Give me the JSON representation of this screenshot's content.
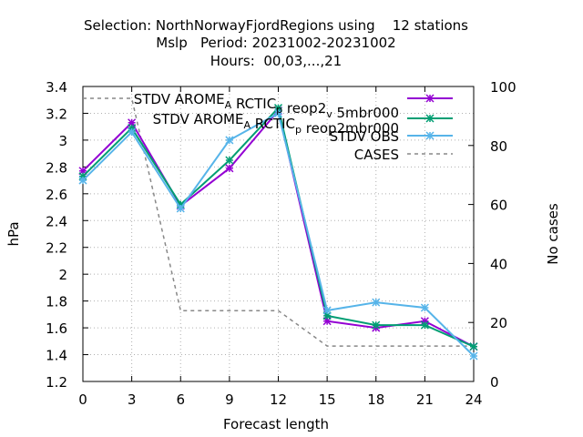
{
  "title_lines": [
    "Selection: NorthNorwayFjordRegions using    12 stations",
    "Mslp   Period: 20231002-20231002",
    "Hours:  00,03,...,21"
  ],
  "chart_data": {
    "type": "line",
    "xlabel": "Forecast length",
    "ylabel": "hPa",
    "y2label": "No cases",
    "x": [
      0,
      3,
      6,
      9,
      12,
      15,
      18,
      21,
      24
    ],
    "xlim": [
      0,
      24
    ],
    "ylim": [
      1.2,
      3.4
    ],
    "y2lim": [
      0,
      100
    ],
    "x_ticks": [
      "0",
      "3",
      "6",
      "9",
      "12",
      "15",
      "18",
      "21",
      "24"
    ],
    "y_ticks": [
      "1.2",
      "1.4",
      "1.6",
      "1.8",
      "2",
      "2.2",
      "2.4",
      "2.6",
      "2.8",
      "3",
      "3.2",
      "3.4"
    ],
    "y2_ticks": [
      "0",
      "20",
      "40",
      "60",
      "80",
      "100"
    ],
    "legend_position": "top-right",
    "grid": true,
    "series": [
      {
        "name": "STDV AROME_ARCTIC_preop2_v5mbr000",
        "legend_main": [
          "STDV AROME",
          " RCTIC",
          " reop2",
          " 5mbr000"
        ],
        "legend_subs": [
          "A",
          "p",
          "v"
        ],
        "axis": "y1",
        "color": "#9400d3",
        "marker": "x-star",
        "values": [
          2.77,
          3.13,
          2.51,
          2.79,
          3.22,
          1.65,
          1.6,
          1.65,
          1.46
        ]
      },
      {
        "name": "STDV AROME_ARCTIC_preop2mbr000",
        "legend_main": [
          "STDV AROME",
          " RCTIC",
          " reop2mbr000"
        ],
        "legend_subs": [
          "A",
          "p"
        ],
        "axis": "y1",
        "color": "#009e73",
        "marker": "x-star",
        "values": [
          2.73,
          3.09,
          2.52,
          2.85,
          3.24,
          1.69,
          1.62,
          1.62,
          1.46
        ]
      },
      {
        "name": "STDV OBS",
        "legend_label": "STDV OBS",
        "axis": "y1",
        "color": "#56b4e9",
        "marker": "x-star",
        "values": [
          2.7,
          3.06,
          2.49,
          3.0,
          3.2,
          1.73,
          1.79,
          1.75,
          1.39
        ]
      },
      {
        "name": "CASES",
        "legend_label": "CASES",
        "axis": "y2",
        "color": "#888888",
        "dashed": true,
        "values": [
          96,
          96,
          24,
          24,
          24,
          12,
          12,
          12,
          12
        ]
      }
    ]
  }
}
